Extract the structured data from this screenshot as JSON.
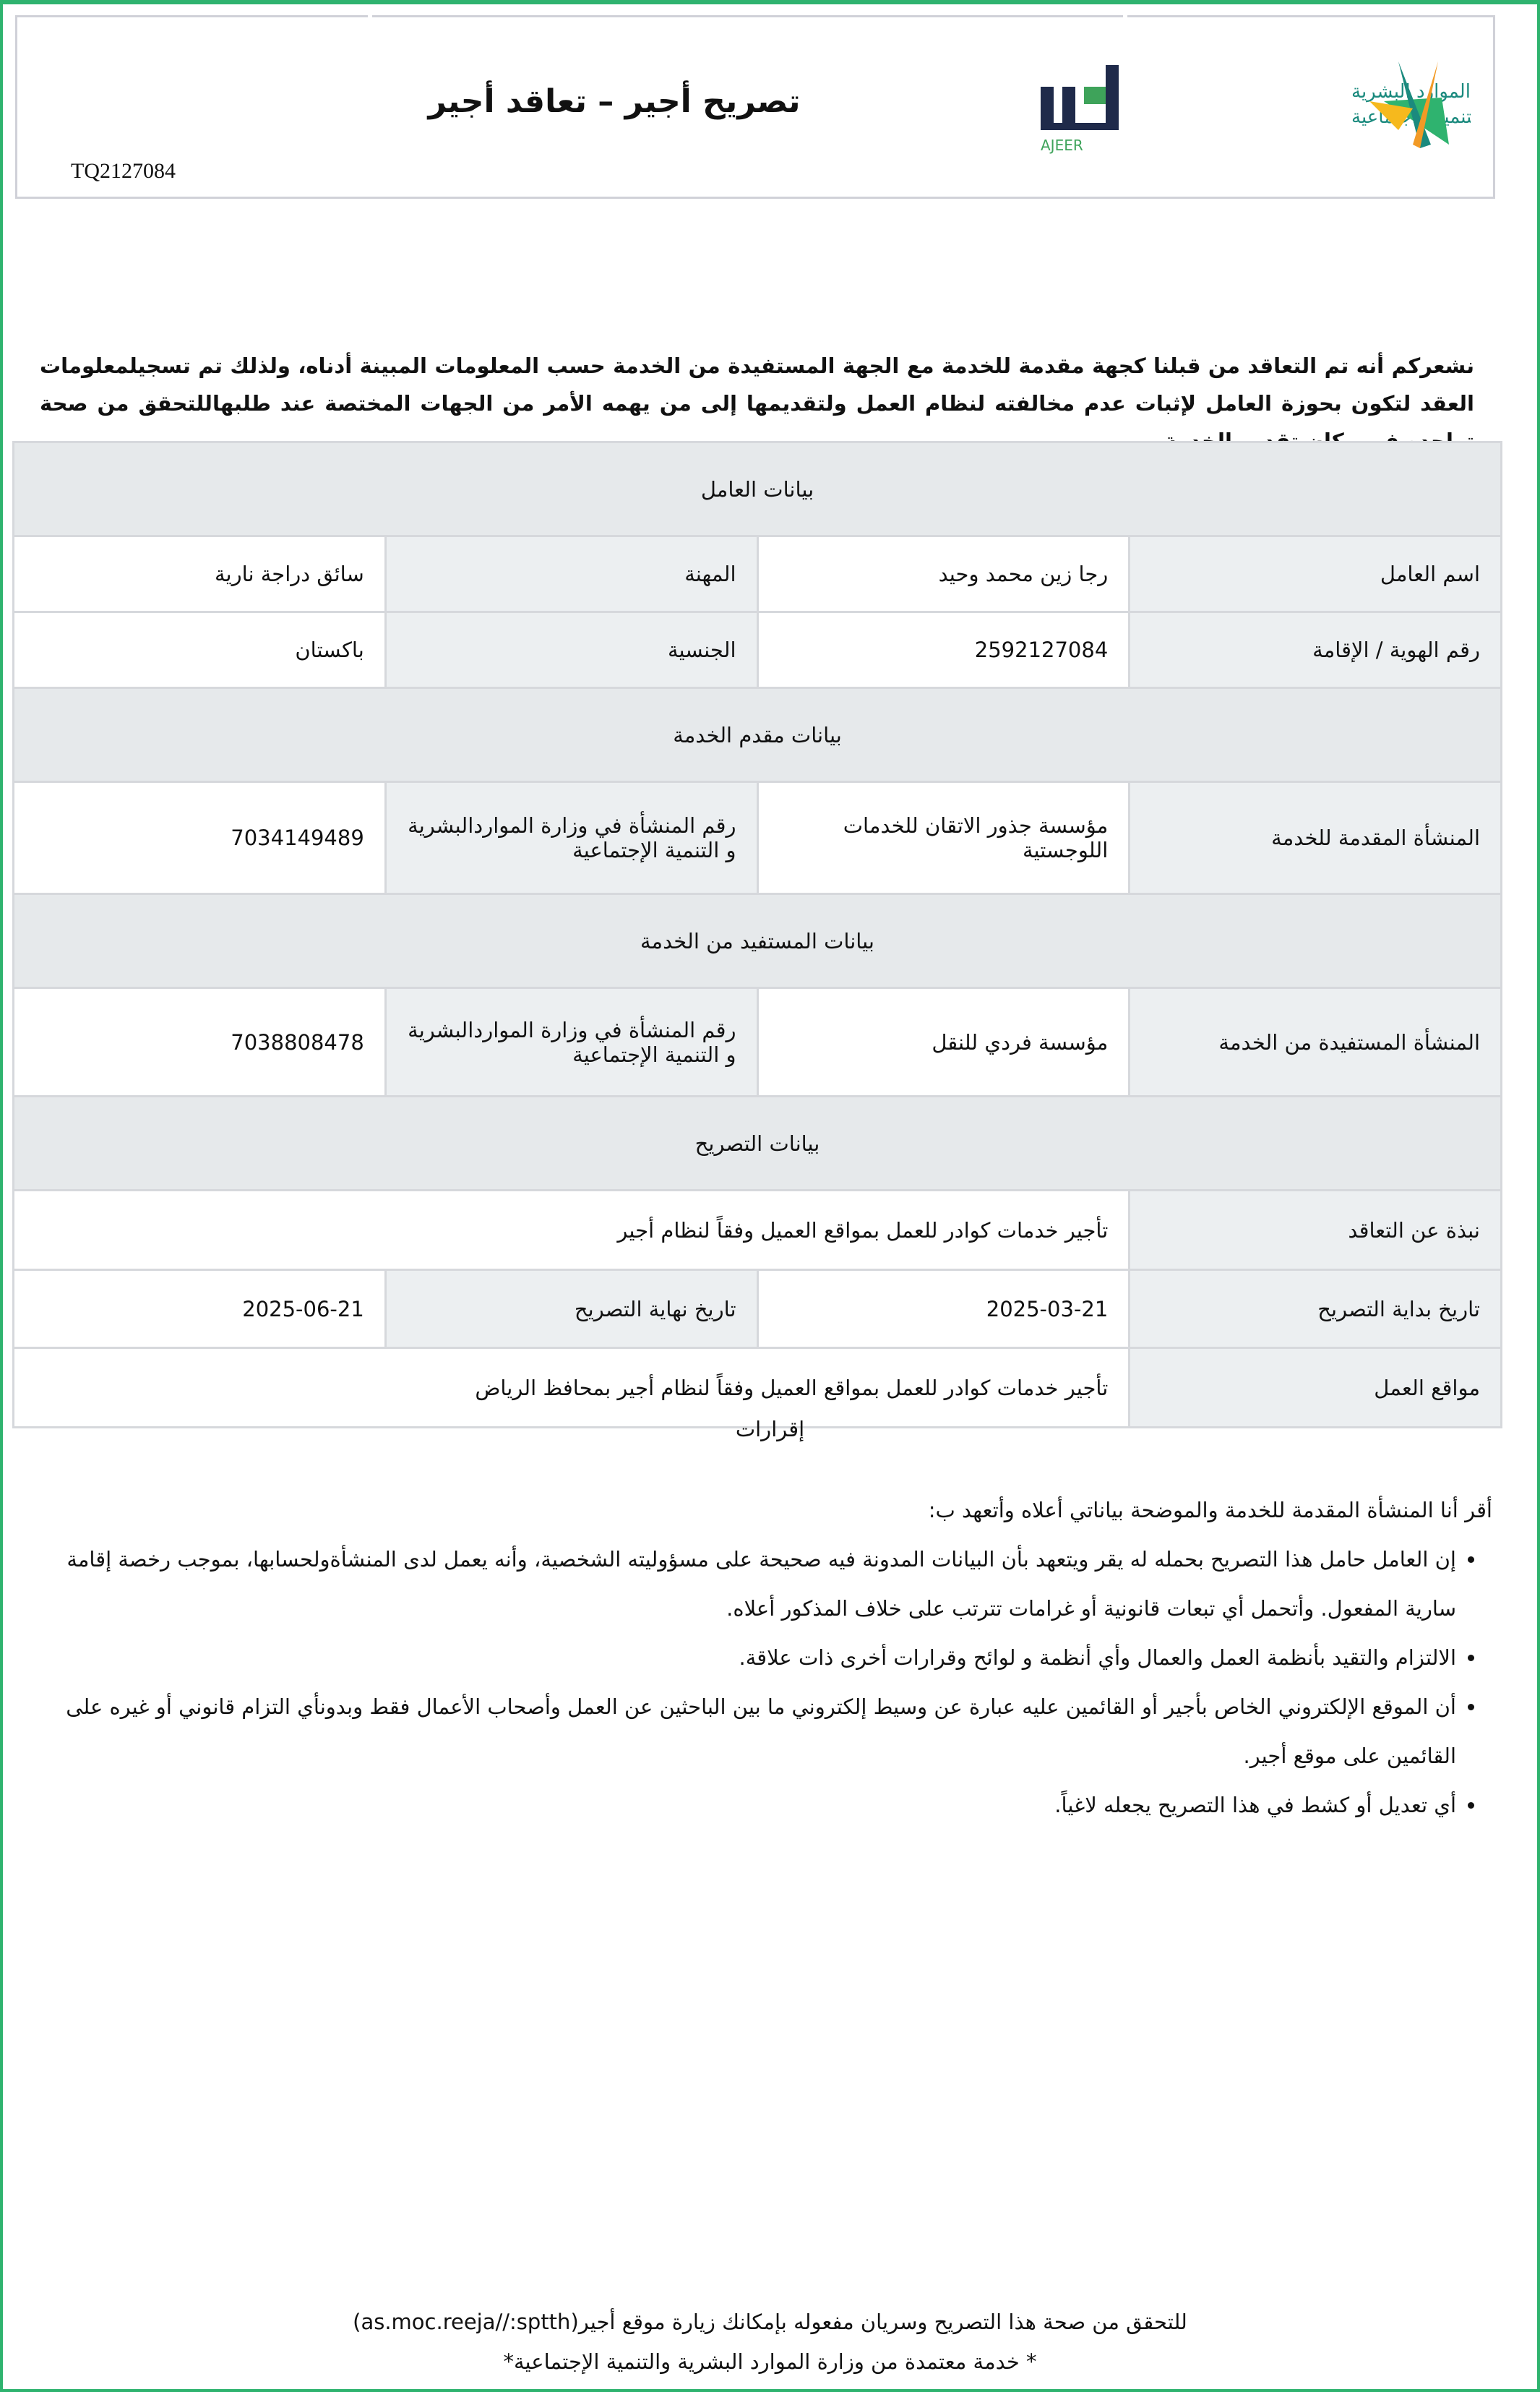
{
  "header": {
    "title": "تصريح أجير –  تعاقد أجير",
    "reference": "TQ2127084",
    "ministry_logo_text": "الموارد البشرية والتنمية الاجتماعية",
    "ajeer_logo_text": "أجير",
    "ajeer_logo_latin": "AJEER"
  },
  "intro": "نشعركم أنه تم التعاقد من قبلنا كجهة مقدمة للخدمة مع الجهة المستفيدة من الخدمة حسب المعلومات المبينة أدناه، ولذلك تم تسجيلمعلومات العقد لتكون بحوزة العامل لإثبات عدم مخالفته لنظام العمل ولتقديمها إلى من يهمه الأمر من الجهات المختصة عند طلبهاللتحقق من صحة تواجده في مكان تقديم الخدمة",
  "worker": {
    "section": "بيانات العامل",
    "name_label": "اسم العامل",
    "name": "رجا زين محمد وحيد",
    "job_label": "المهنة",
    "job": "سائق دراجة نارية",
    "id_label": "رقم الهوية / الإقامة",
    "id": "2592127084",
    "nat_label": "الجنسية",
    "nat": "باكستان"
  },
  "provider": {
    "section": "بيانات مقدم الخدمة",
    "label": "المنشأة المقدمة للخدمة",
    "name": "مؤسسة جذور الاتقان للخدمات اللوجستية",
    "num_label": "رقم المنشأة في وزارة المواردالبشرية و التنمية الإجتماعية",
    "num": "7034149489"
  },
  "beneficiary": {
    "section": "بيانات المستفيد من الخدمة",
    "label": "المنشأة المستفيدة من الخدمة",
    "name": "مؤسسة فردي للنقل",
    "num_label": "رقم المنشأة في وزارة المواردالبشرية و التنمية الإجتماعية",
    "num": "7038808478"
  },
  "permit": {
    "section": "بيانات التصريح",
    "about_label": "نبذة عن التعاقد",
    "about": "تأجير خدمات كوادر للعمل بمواقع العميل وفقاً لنظام أجير",
    "start_label": "تاريخ بداية التصريح",
    "start": "2025-03-21",
    "end_label": "تاريخ نهاية التصريح",
    "end": "2025-06-21",
    "sites_label": "مواقع العمل",
    "sites": "تأجير خدمات كوادر للعمل بمواقع العميل وفقاً لنظام أجير بمحافظ الرياض"
  },
  "declarations": {
    "title": "إقرارات",
    "intro": "أقر أنا المنشأة المقدمة للخدمة والموضحة بياناتي أعلاه وأتعهد ب:",
    "items": [
      "إن العامل حامل هذا التصريح بحمله له يقر ويتعهد بأن البيانات المدونة فيه صحيحة على مسؤوليته الشخصية، وأنه يعمل لدى المنشأةولحسابها، بموجب رخصة إقامة سارية المفعول. وأتحمل أي تبعات قانونية أو غرامات تترتب على خلاف المذكور أعلاه.",
      "الالتزام والتقيد بأنظمة العمل والعمال وأي أنظمة و لوائح وقرارات أخرى ذات علاقة.",
      "أن الموقع الإلكتروني الخاص بأجير أو القائمين عليه عبارة عن وسيط إلكتروني ما بين الباحثين عن العمل وأصحاب الأعمال فقط وبدونأي التزام قانوني أو غيره على القائمين على موقع أجير.",
      "أي تعديل أو كشط في هذا التصريح يجعله لاغياً."
    ]
  },
  "footer": {
    "verify": "للتحقق من صحة هذا التصريح وسريان مفعوله بإمكانك زيارة موقع أجير(as.moc.reeja//:sptth)",
    "note": "* خدمة معتمدة من وزارة الموارد البشرية والتنمية الإجتماعية*"
  }
}
